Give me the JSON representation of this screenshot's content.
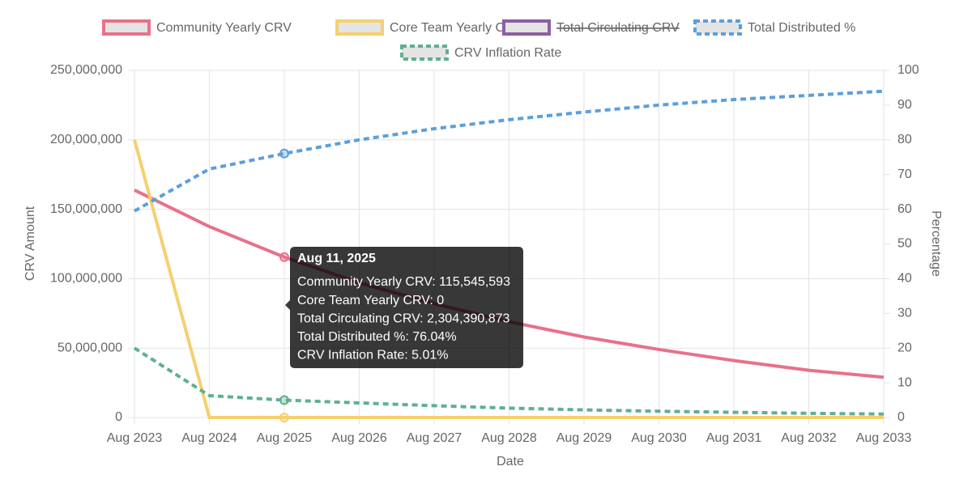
{
  "chart_data": {
    "type": "line",
    "x_label": "Date",
    "y_label": "CRV Amount",
    "y2_label": "Percentage",
    "categories": [
      "Aug 2023",
      "Aug 2024",
      "Aug 2025",
      "Aug 2026",
      "Aug 2027",
      "Aug 2028",
      "Aug 2029",
      "Aug 2030",
      "Aug 2031",
      "Aug 2032",
      "Aug 2033"
    ],
    "ylim": [
      0,
      250000000
    ],
    "yticks": [
      0,
      {
        "value": 50000000,
        "label": "50,000,000"
      },
      {
        "value": 100000000,
        "label": "100,000,000"
      },
      {
        "value": 150000000,
        "label": "150,000,000"
      },
      {
        "value": 200000000,
        "label": "200,000,000"
      },
      {
        "value": 250000000,
        "label": "250,000,000"
      }
    ],
    "y2lim": [
      0,
      100
    ],
    "y2ticks": [
      0,
      10,
      20,
      30,
      40,
      50,
      60,
      70,
      80,
      90,
      100
    ],
    "grid": true,
    "legend": "top",
    "series": [
      {
        "name": "Community Yearly CRV",
        "color": "#e8718a",
        "dashed": false,
        "values": [
          163800000,
          137500000,
          115545593,
          97000000,
          82000000,
          69000000,
          58000000,
          49000000,
          41000000,
          34000000,
          29000000
        ]
      },
      {
        "name": "Core Team Yearly CRV",
        "color": "#f5d06e",
        "dashed": false,
        "values": [
          200000000,
          0,
          0,
          0,
          0,
          0,
          0,
          0,
          0,
          0,
          0
        ]
      },
      {
        "name": "Total Circulating CRV",
        "color": "#8e5ea2",
        "hidden": true
      },
      {
        "name": "Total Distributed %",
        "color": "#5b9fde",
        "dashed": true,
        "axis": "y2",
        "values": [
          59.5,
          71.6,
          76.04,
          80,
          83.2,
          85.8,
          88,
          90,
          91.6,
          92.8,
          94
        ]
      },
      {
        "name": "CRV Inflation Rate",
        "color": "#5fb08f",
        "dashed": true,
        "axis": "y2",
        "values": [
          20,
          6.3,
          5.01,
          4.2,
          3.4,
          2.7,
          2.2,
          1.8,
          1.5,
          1.2,
          1.0
        ]
      }
    ],
    "tooltip": {
      "title": "Aug 11, 2025",
      "lines": [
        "Community Yearly CRV: 115,545,593",
        "Core Team Yearly CRV: 0",
        "Total Circulating CRV: 2,304,390,873",
        "Total Distributed %: 76.04%",
        "CRV Inflation Rate: 5.01%"
      ]
    }
  }
}
